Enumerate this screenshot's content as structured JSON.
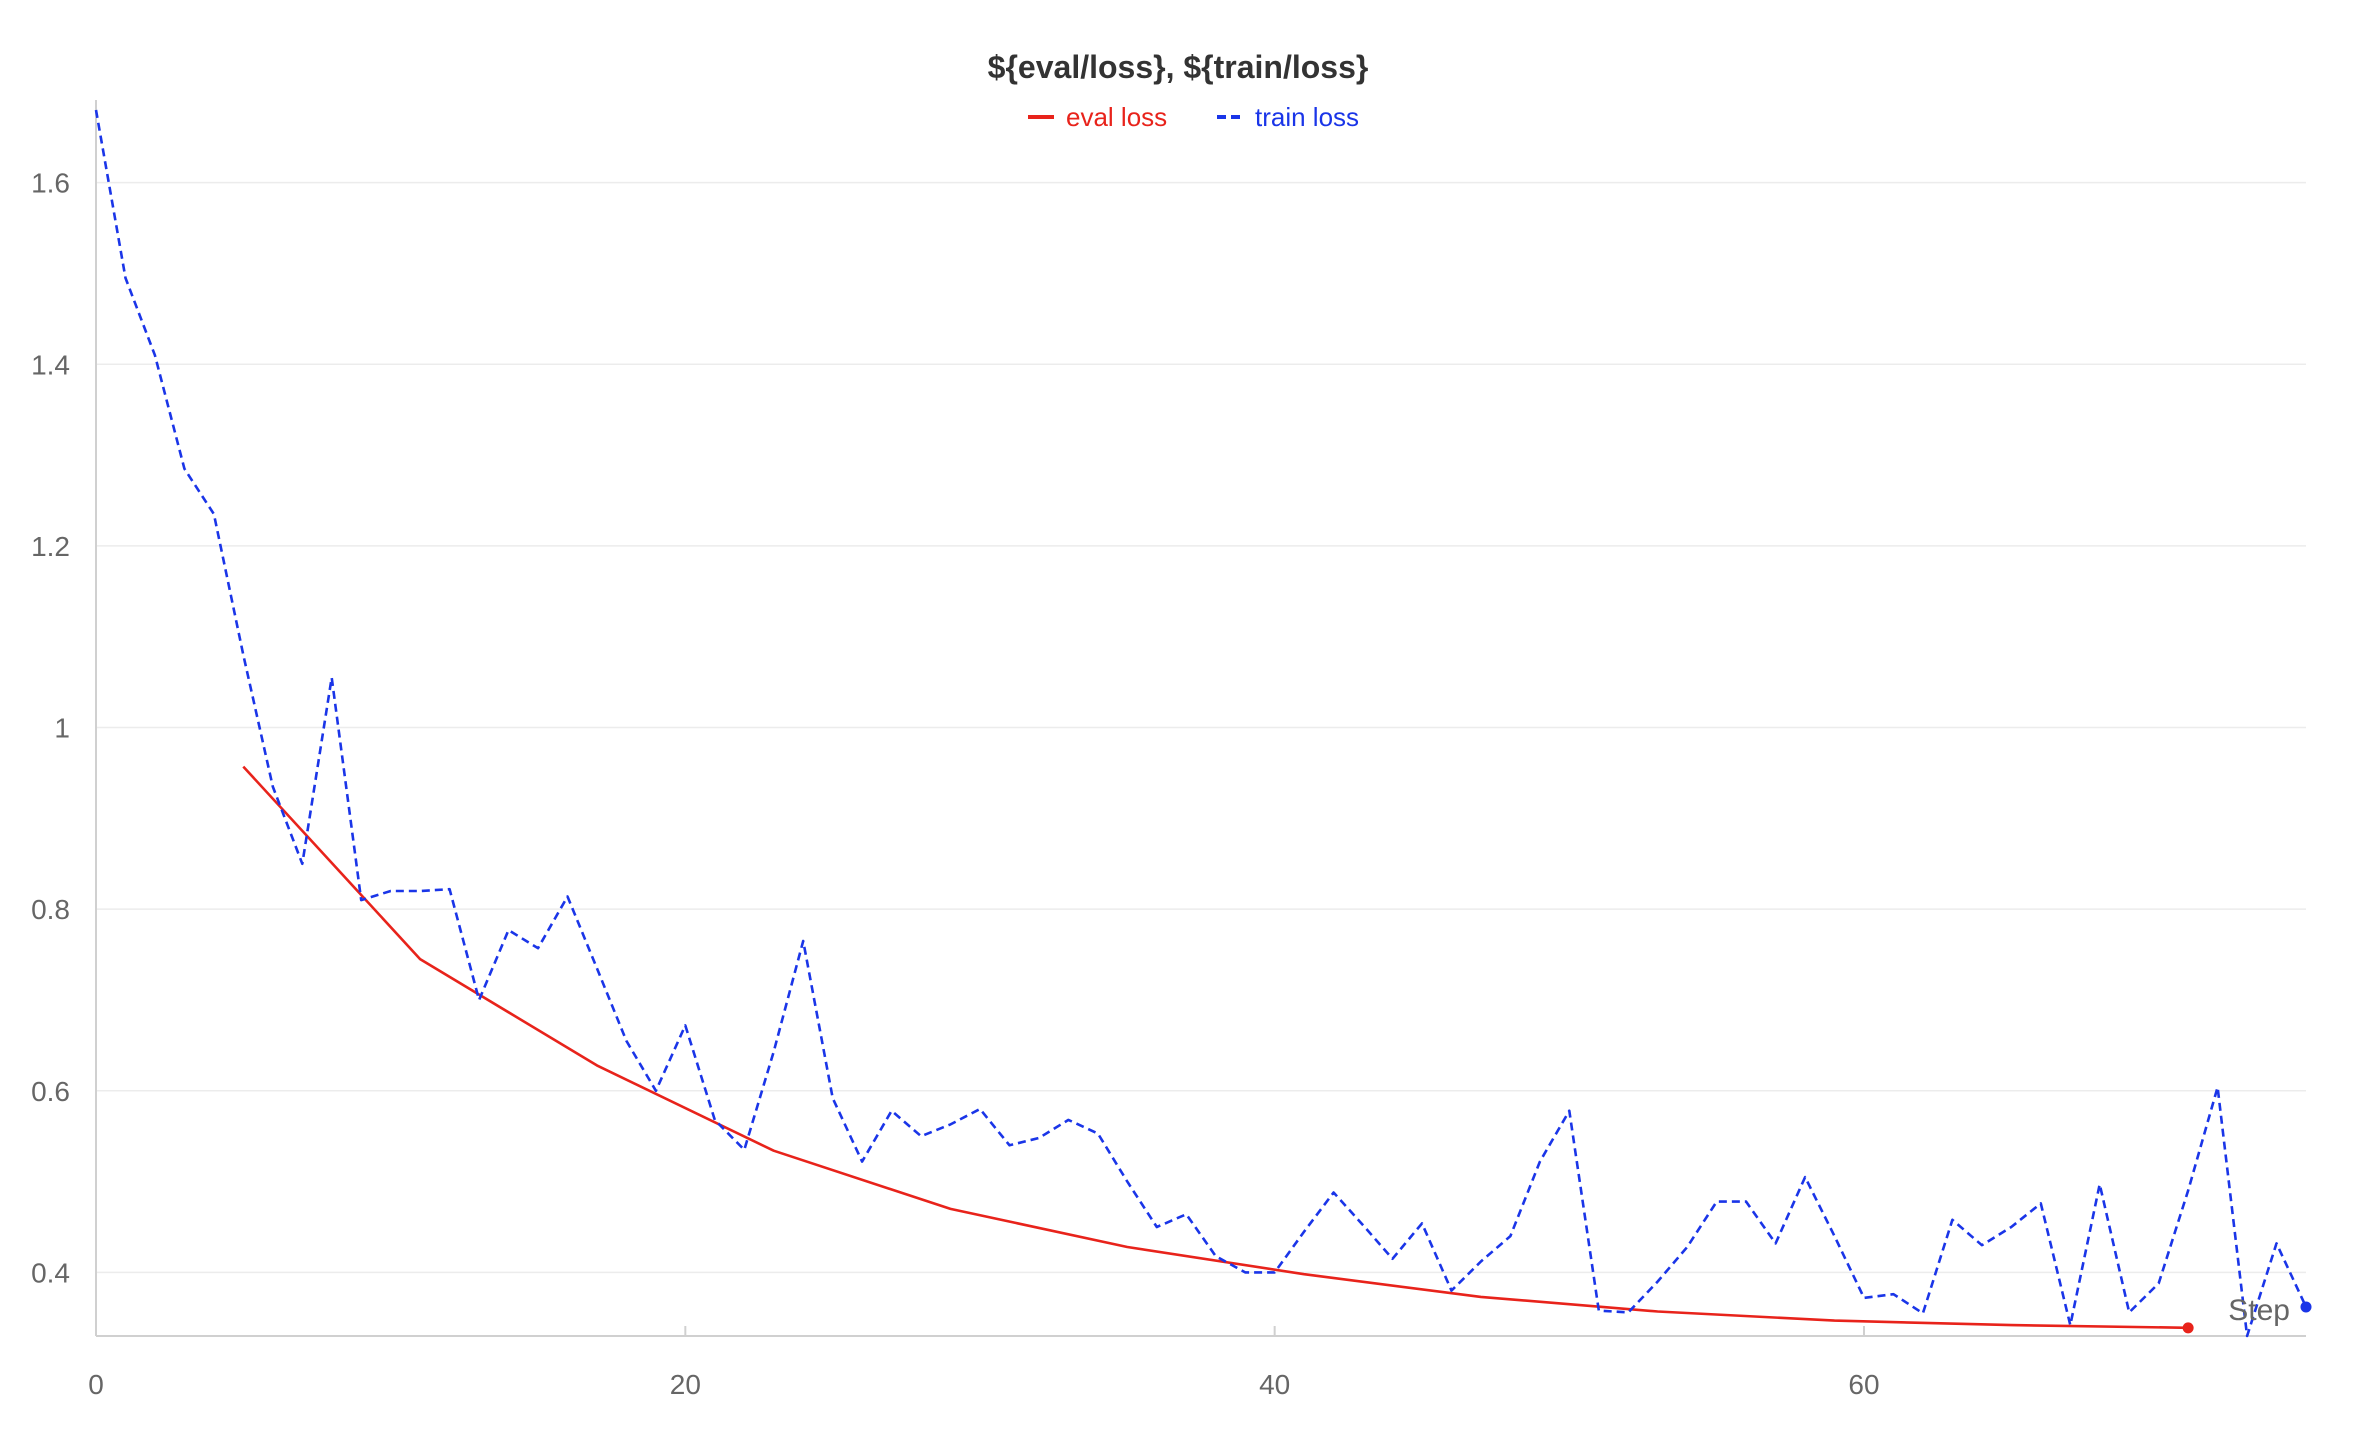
{
  "chart_data": {
    "type": "line",
    "title": "${eval/loss}, ${train/loss}",
    "xlabel": "Step",
    "ylabel": "",
    "xlim": [
      0,
      75
    ],
    "ylim": [
      0.33,
      1.68
    ],
    "x_ticks": [
      0,
      20,
      40,
      60
    ],
    "y_ticks": [
      0.4,
      0.6,
      0.8,
      1.0,
      1.2,
      1.4,
      1.6
    ],
    "y_tick_labels": [
      "0.4",
      "0.6",
      "0.8",
      "1",
      "1.2",
      "1.4",
      "1.6"
    ],
    "x_tick_labels": [
      "0",
      "20",
      "40",
      "60"
    ],
    "grid": true,
    "legend_position": "top-center",
    "series": [
      {
        "name": "eval loss",
        "color": "#e8231b",
        "style": "solid",
        "points": [
          [
            5,
            0.957
          ],
          [
            11,
            0.745
          ],
          [
            17,
            0.628
          ],
          [
            23,
            0.534
          ],
          [
            29,
            0.47
          ],
          [
            35,
            0.428
          ],
          [
            41,
            0.398
          ],
          [
            47,
            0.373
          ],
          [
            53,
            0.357
          ],
          [
            59,
            0.347
          ],
          [
            65,
            0.342
          ],
          [
            71,
            0.339
          ]
        ]
      },
      {
        "name": "train loss",
        "color": "#1a35e8",
        "style": "dashed",
        "points": [
          [
            0,
            1.68
          ],
          [
            1,
            1.495
          ],
          [
            2,
            1.41
          ],
          [
            3,
            1.285
          ],
          [
            4,
            1.235
          ],
          [
            5,
            1.08
          ],
          [
            6,
            0.935
          ],
          [
            7,
            0.85
          ],
          [
            8,
            1.055
          ],
          [
            9,
            0.81
          ],
          [
            10,
            0.82
          ],
          [
            11,
            0.82
          ],
          [
            12,
            0.822
          ],
          [
            13,
            0.7
          ],
          [
            14,
            0.777
          ],
          [
            15,
            0.757
          ],
          [
            16,
            0.814
          ],
          [
            17,
            0.735
          ],
          [
            18,
            0.655
          ],
          [
            19,
            0.6
          ],
          [
            20,
            0.672
          ],
          [
            21,
            0.568
          ],
          [
            22,
            0.535
          ],
          [
            23,
            0.643
          ],
          [
            24,
            0.765
          ],
          [
            25,
            0.592
          ],
          [
            26,
            0.522
          ],
          [
            27,
            0.578
          ],
          [
            28,
            0.55
          ],
          [
            29,
            0.563
          ],
          [
            30,
            0.58
          ],
          [
            31,
            0.54
          ],
          [
            32,
            0.548
          ],
          [
            33,
            0.568
          ],
          [
            34,
            0.553
          ],
          [
            35,
            0.5
          ],
          [
            36,
            0.45
          ],
          [
            37,
            0.464
          ],
          [
            38,
            0.418
          ],
          [
            39,
            0.4
          ],
          [
            40,
            0.4
          ],
          [
            41,
            0.445
          ],
          [
            42,
            0.488
          ],
          [
            43,
            0.452
          ],
          [
            44,
            0.415
          ],
          [
            45,
            0.454
          ],
          [
            46,
            0.38
          ],
          [
            47,
            0.412
          ],
          [
            48,
            0.44
          ],
          [
            49,
            0.522
          ],
          [
            50,
            0.578
          ],
          [
            51,
            0.358
          ],
          [
            52,
            0.356
          ],
          [
            53,
            0.39
          ],
          [
            54,
            0.428
          ],
          [
            55,
            0.478
          ],
          [
            56,
            0.478
          ],
          [
            57,
            0.432
          ],
          [
            58,
            0.505
          ],
          [
            59,
            0.44
          ],
          [
            60,
            0.372
          ],
          [
            61,
            0.376
          ],
          [
            62,
            0.355
          ],
          [
            63,
            0.458
          ],
          [
            64,
            0.43
          ],
          [
            65,
            0.45
          ],
          [
            66,
            0.476
          ],
          [
            67,
            0.342
          ],
          [
            68,
            0.497
          ],
          [
            69,
            0.356
          ],
          [
            70,
            0.388
          ],
          [
            71,
            0.49
          ],
          [
            72,
            0.604
          ],
          [
            73,
            0.33
          ],
          [
            74,
            0.432
          ],
          [
            75,
            0.362
          ]
        ]
      }
    ]
  }
}
